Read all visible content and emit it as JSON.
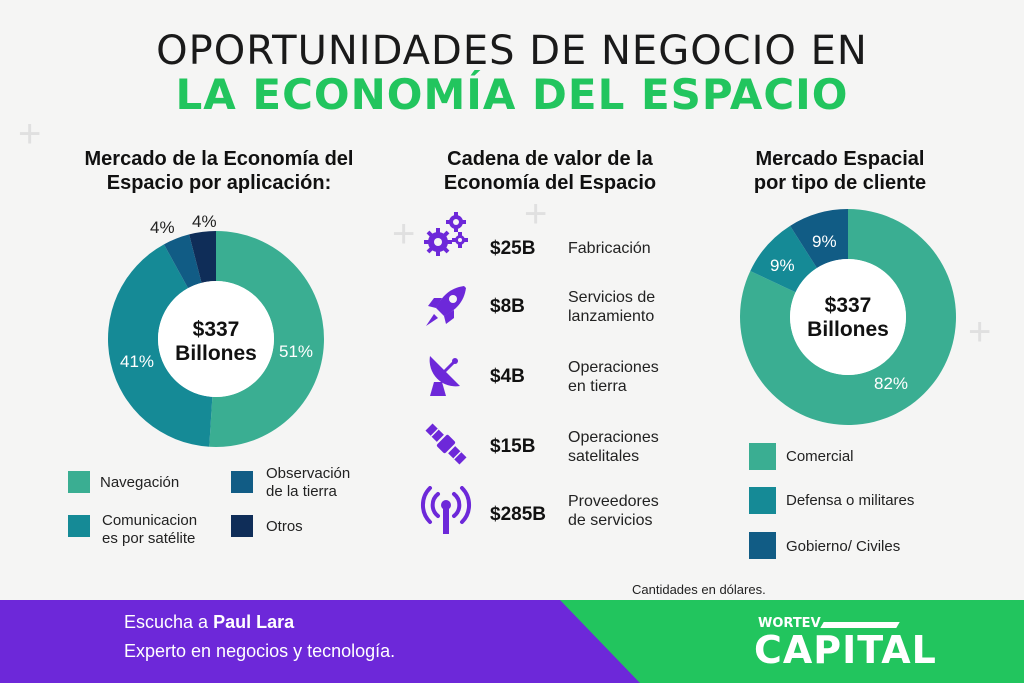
{
  "title_line1": "OPORTUNIDADES DE NEGOCIO EN",
  "title_line2": "LA ECONOMÍA DEL ESPACIO",
  "colors": {
    "green": "#22c55e",
    "purple": "#6d28d9",
    "teal_light": "#3aae92",
    "teal_mid": "#158a96",
    "blue": "#115c85",
    "navy": "#0f2d58"
  },
  "chart_data": [
    {
      "type": "pie",
      "title": "Mercado de la Economía del Espacio por aplicación:",
      "title_line1": "Mercado de la Economía del",
      "title_line2": "Espacio por aplicación:",
      "center_value": "$337",
      "center_unit": "Billones",
      "slices": [
        {
          "label": "Navegación",
          "value": 51,
          "color": "#3aae92"
        },
        {
          "label": "Comunicaciones por satélite",
          "value": 41,
          "color": "#158a96"
        },
        {
          "label": "Observación de la tierra",
          "value": 4,
          "color": "#115c85"
        },
        {
          "label": "Otros",
          "value": 4,
          "color": "#0f2d58"
        }
      ],
      "value_labels": [
        "51%",
        "41%",
        "4%",
        "4%"
      ],
      "legend": [
        {
          "line1": "Navegación",
          "line2": "",
          "color": "#3aae92"
        },
        {
          "line1": "Observación",
          "line2": "de la tierra",
          "color": "#115c85"
        },
        {
          "line1": "Comunicacion",
          "line2": "es por satélite",
          "color": "#158a96"
        },
        {
          "line1": "Otros",
          "line2": "",
          "color": "#0f2d58"
        }
      ]
    },
    {
      "type": "table",
      "title": "Cadena de valor de la Economía del Espacio",
      "title_line1": "Cadena de valor de la",
      "title_line2": "Economía del Espacio",
      "rows": [
        {
          "icon": "gears-icon",
          "value": "$25B",
          "line1": "Fabricación",
          "line2": ""
        },
        {
          "icon": "rocket-icon",
          "value": "$8B",
          "line1": "Servicios de",
          "line2": "lanzamiento"
        },
        {
          "icon": "satellite-dish-icon",
          "value": "$4B",
          "line1": "Operaciones",
          "line2": "en tierra"
        },
        {
          "icon": "satellite-icon",
          "value": "$15B",
          "line1": "Operaciones",
          "line2": "satelitales"
        },
        {
          "icon": "antenna-icon",
          "value": "$285B",
          "line1": "Proveedores",
          "line2": "de servicios"
        }
      ]
    },
    {
      "type": "pie",
      "title": "Mercado Espacial por tipo de cliente",
      "title_line1": "Mercado Espacial",
      "title_line2": "por tipo de cliente",
      "center_value": "$337",
      "center_unit": "Billones",
      "slices": [
        {
          "label": "Comercial",
          "value": 82,
          "color": "#3aae92"
        },
        {
          "label": "Defensa o militares",
          "value": 9,
          "color": "#158a96"
        },
        {
          "label": "Gobierno/ Civiles",
          "value": 9,
          "color": "#115c85"
        }
      ],
      "value_labels": [
        "82%",
        "9%",
        "9%"
      ],
      "legend": [
        {
          "line1": "Comercial",
          "color": "#3aae92"
        },
        {
          "line1": "Defensa o militares",
          "color": "#158a96"
        },
        {
          "line1": "Gobierno/ Civiles",
          "color": "#115c85"
        }
      ]
    }
  ],
  "footnote": "Cantidades en dólares.",
  "footer": {
    "listen_prefix": "Escucha a ",
    "listen_name": "Paul Lara",
    "subtitle": "Experto en negocios y tecnología.",
    "logo_small": "WORTEV",
    "logo_main": "CAPITAL"
  }
}
